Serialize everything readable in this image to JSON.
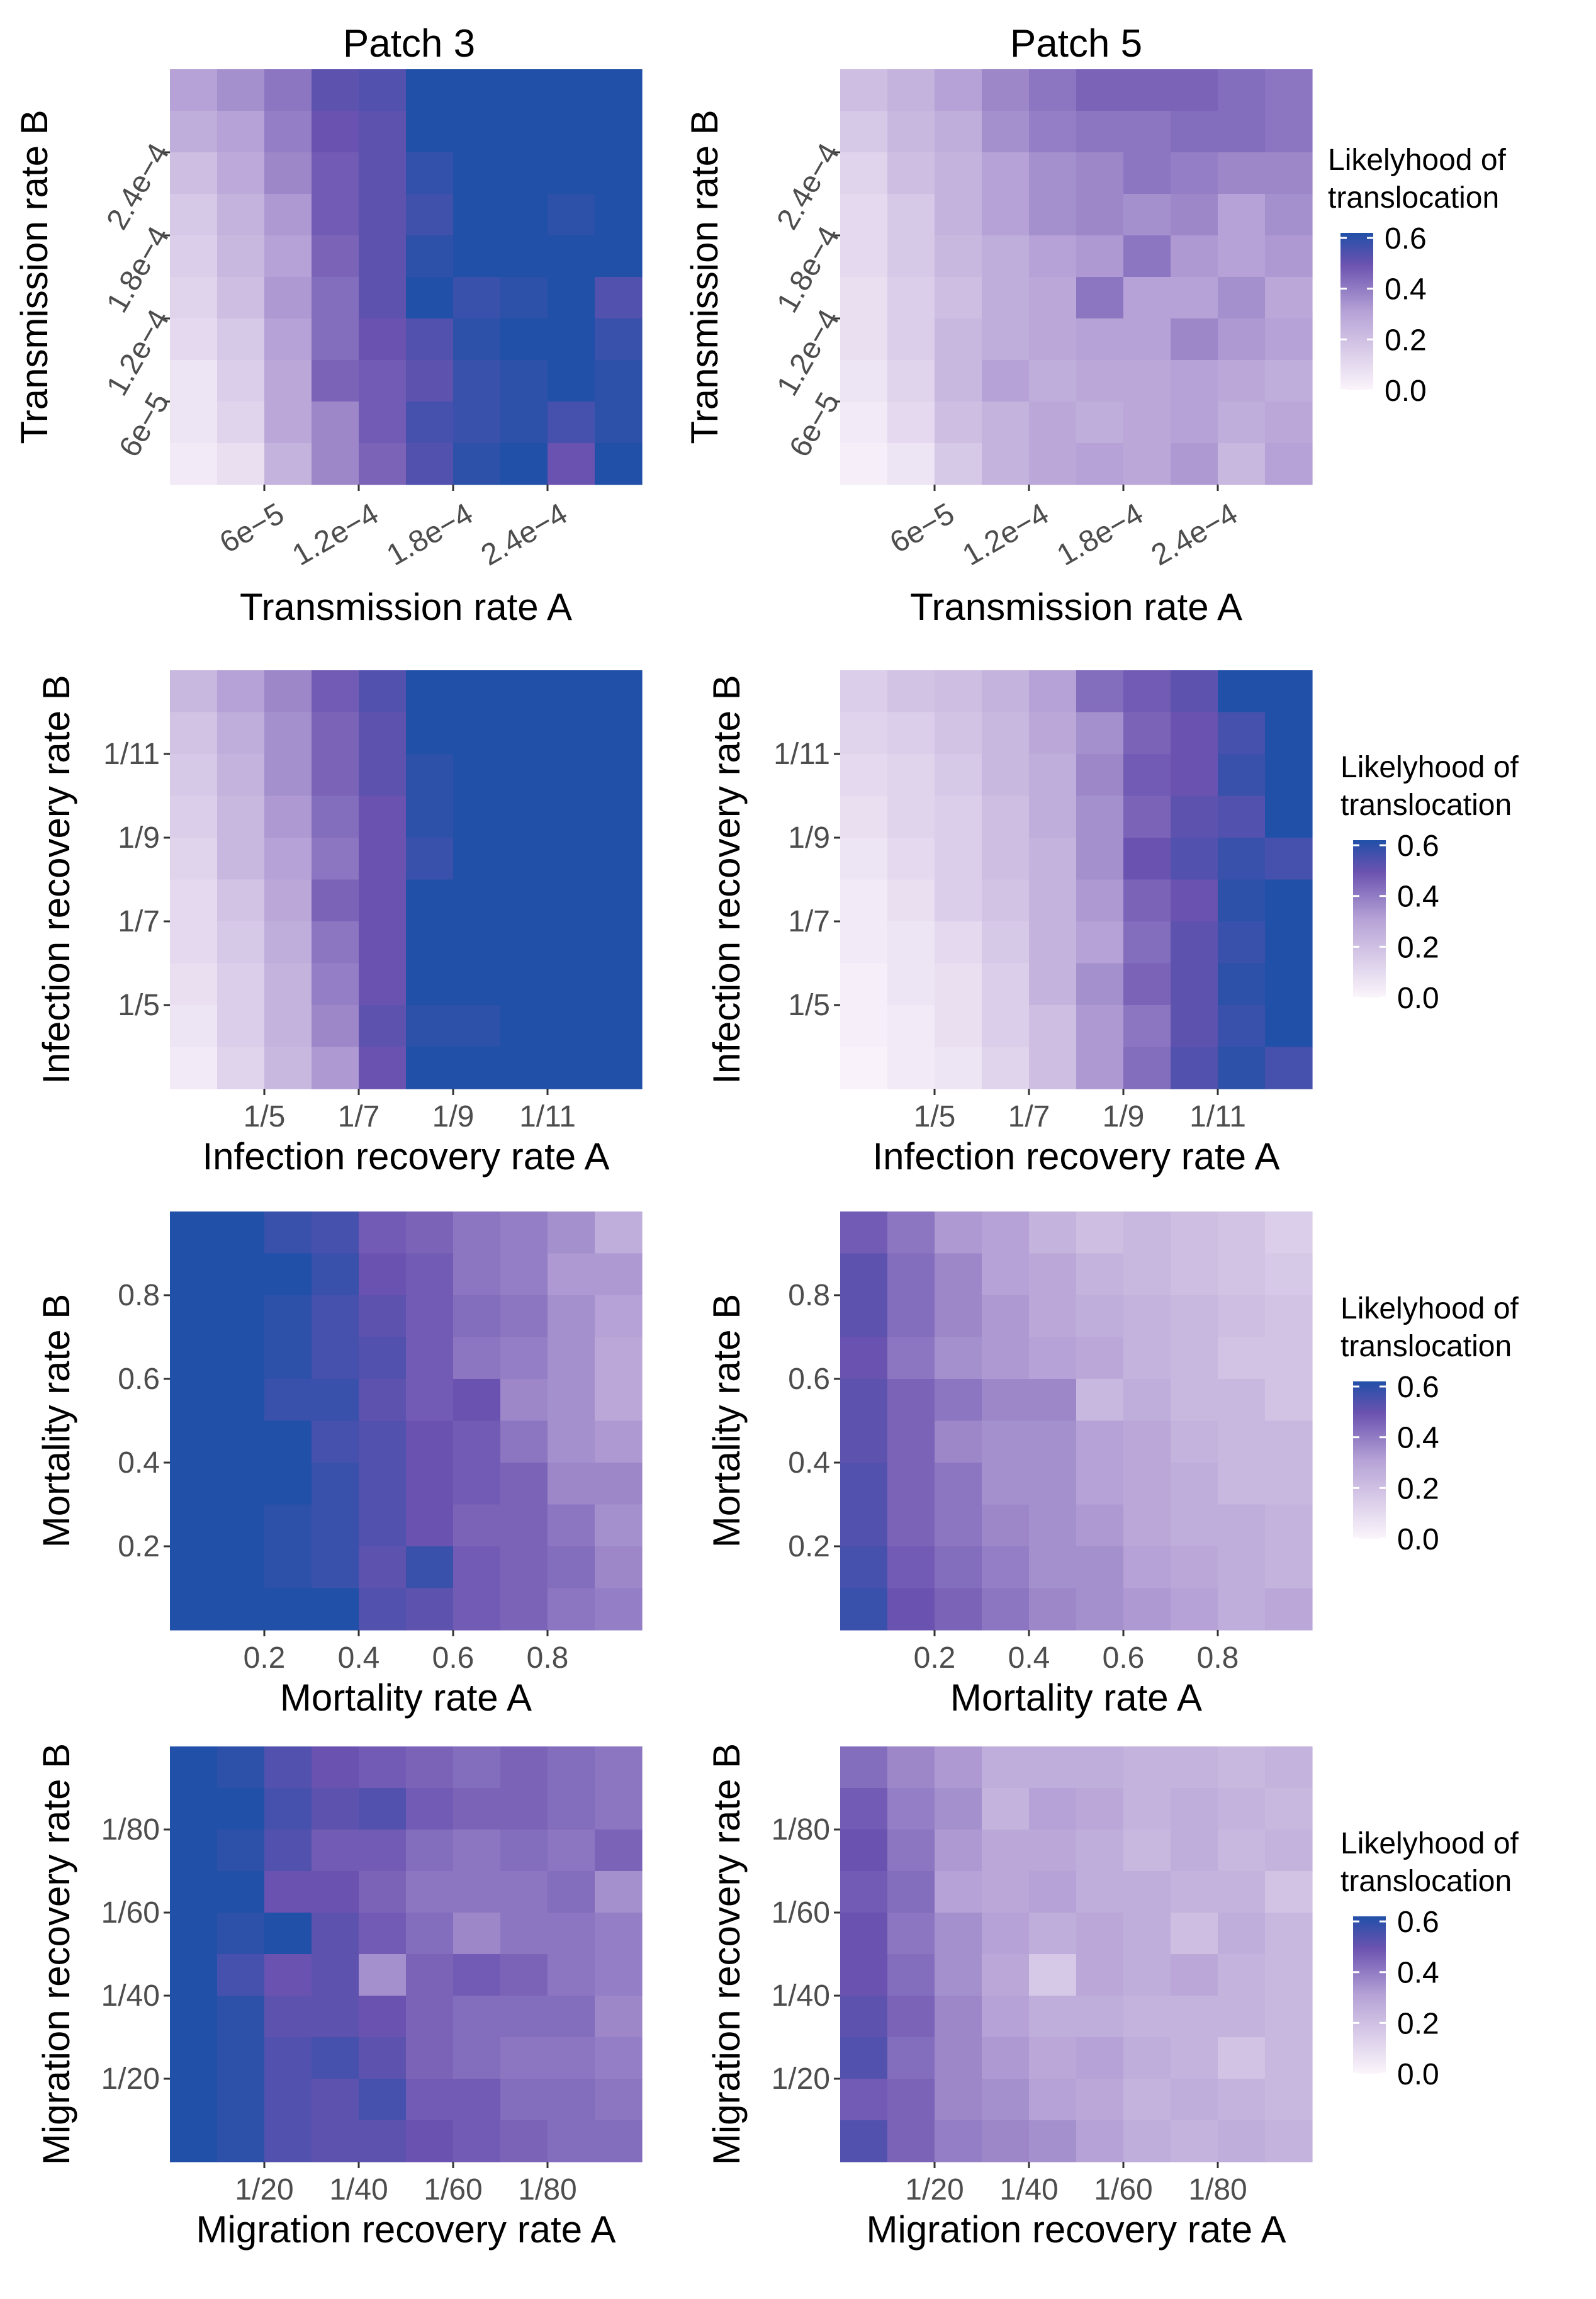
{
  "columns": [
    "Patch 3",
    "Patch 5"
  ],
  "legend": {
    "title_line1": "Likelyhood of",
    "title_line2": "translocation",
    "ticks": [
      "0.6",
      "0.4",
      "0.2",
      "0.0"
    ],
    "tick_values": [
      0.6,
      0.4,
      0.2,
      0.0
    ]
  },
  "colors": {
    "low": "#fbf5fb",
    "mid": "#6a52b0",
    "high": "#2150a8"
  },
  "chart_data": [
    {
      "type": "heatmap",
      "patch": "Patch 3",
      "row": 0,
      "xlabel": "Transmission rate A",
      "ylabel": "Transmission rate B",
      "xticks": [
        "6e−5",
        "1.2e−4",
        "1.8e−4",
        "2.4e−4"
      ],
      "yticks": [
        "2.4e−4",
        "1.8e−4",
        "1.2e−4",
        "6e−5"
      ],
      "ncols": 10,
      "nrows": 10,
      "values": [
        [
          0.3,
          0.34,
          0.4,
          0.5,
          0.52,
          0.62,
          0.62,
          0.62,
          0.62,
          0.62
        ],
        [
          0.26,
          0.3,
          0.38,
          0.48,
          0.5,
          0.62,
          0.62,
          0.62,
          0.62,
          0.62
        ],
        [
          0.2,
          0.27,
          0.36,
          0.46,
          0.5,
          0.57,
          0.62,
          0.62,
          0.62,
          0.62
        ],
        [
          0.16,
          0.24,
          0.32,
          0.46,
          0.5,
          0.55,
          0.6,
          0.62,
          0.58,
          0.62
        ],
        [
          0.14,
          0.22,
          0.3,
          0.44,
          0.5,
          0.58,
          0.62,
          0.6,
          0.62,
          0.62
        ],
        [
          0.12,
          0.2,
          0.32,
          0.42,
          0.5,
          0.62,
          0.56,
          0.58,
          0.62,
          0.52
        ],
        [
          0.1,
          0.16,
          0.3,
          0.42,
          0.48,
          0.52,
          0.58,
          0.62,
          0.62,
          0.56
        ],
        [
          0.06,
          0.14,
          0.28,
          0.44,
          0.46,
          0.5,
          0.56,
          0.58,
          0.62,
          0.58
        ],
        [
          0.06,
          0.12,
          0.28,
          0.36,
          0.46,
          0.54,
          0.56,
          0.58,
          0.54,
          0.58
        ],
        [
          0.04,
          0.08,
          0.24,
          0.36,
          0.44,
          0.52,
          0.58,
          0.6,
          0.48,
          0.62
        ]
      ]
    },
    {
      "type": "heatmap",
      "patch": "Patch 5",
      "row": 0,
      "xlabel": "Transmission rate A",
      "ylabel": "Transmission rate B",
      "xticks": [
        "6e−5",
        "1.2e−4",
        "1.8e−4",
        "2.4e−4"
      ],
      "yticks": [
        "2.4e−4",
        "1.8e−4",
        "1.2e−4",
        "6e−5"
      ],
      "ncols": 10,
      "nrows": 10,
      "values": [
        [
          0.2,
          0.24,
          0.3,
          0.36,
          0.4,
          0.44,
          0.44,
          0.44,
          0.42,
          0.4
        ],
        [
          0.16,
          0.22,
          0.26,
          0.34,
          0.38,
          0.4,
          0.4,
          0.42,
          0.42,
          0.4
        ],
        [
          0.12,
          0.2,
          0.24,
          0.3,
          0.34,
          0.36,
          0.4,
          0.38,
          0.36,
          0.36
        ],
        [
          0.1,
          0.16,
          0.24,
          0.3,
          0.34,
          0.36,
          0.34,
          0.36,
          0.3,
          0.34
        ],
        [
          0.1,
          0.16,
          0.22,
          0.26,
          0.3,
          0.32,
          0.4,
          0.32,
          0.3,
          0.32
        ],
        [
          0.08,
          0.14,
          0.2,
          0.26,
          0.28,
          0.4,
          0.3,
          0.3,
          0.34,
          0.28
        ],
        [
          0.08,
          0.14,
          0.22,
          0.26,
          0.28,
          0.3,
          0.3,
          0.36,
          0.32,
          0.3
        ],
        [
          0.06,
          0.12,
          0.22,
          0.3,
          0.26,
          0.28,
          0.28,
          0.3,
          0.28,
          0.26
        ],
        [
          0.04,
          0.1,
          0.2,
          0.24,
          0.28,
          0.26,
          0.28,
          0.3,
          0.26,
          0.28
        ],
        [
          0.02,
          0.06,
          0.16,
          0.24,
          0.28,
          0.3,
          0.28,
          0.32,
          0.22,
          0.3
        ]
      ]
    },
    {
      "type": "heatmap",
      "patch": "Patch 3",
      "row": 1,
      "xlabel": "Infection recovery rate A",
      "ylabel": "Infection recovery rate B",
      "xticks": [
        "1/5",
        "1/7",
        "1/9",
        "1/11"
      ],
      "yticks": [
        "1/11",
        "1/9",
        "1/7",
        "1/5"
      ],
      "ncols": 10,
      "nrows": 10,
      "values": [
        [
          0.22,
          0.3,
          0.36,
          0.46,
          0.52,
          0.62,
          0.62,
          0.62,
          0.62,
          0.62
        ],
        [
          0.18,
          0.26,
          0.34,
          0.44,
          0.5,
          0.6,
          0.62,
          0.62,
          0.62,
          0.62
        ],
        [
          0.16,
          0.24,
          0.34,
          0.44,
          0.5,
          0.58,
          0.62,
          0.62,
          0.62,
          0.62
        ],
        [
          0.14,
          0.22,
          0.32,
          0.42,
          0.48,
          0.58,
          0.62,
          0.62,
          0.62,
          0.62
        ],
        [
          0.12,
          0.22,
          0.3,
          0.4,
          0.48,
          0.56,
          0.62,
          0.62,
          0.62,
          0.62
        ],
        [
          0.1,
          0.18,
          0.28,
          0.44,
          0.48,
          0.62,
          0.62,
          0.62,
          0.62,
          0.62
        ],
        [
          0.1,
          0.16,
          0.26,
          0.4,
          0.48,
          0.62,
          0.6,
          0.62,
          0.62,
          0.62
        ],
        [
          0.08,
          0.14,
          0.24,
          0.38,
          0.48,
          0.62,
          0.62,
          0.62,
          0.62,
          0.62
        ],
        [
          0.06,
          0.14,
          0.24,
          0.36,
          0.5,
          0.58,
          0.58,
          0.62,
          0.62,
          0.62
        ],
        [
          0.04,
          0.12,
          0.22,
          0.32,
          0.48,
          0.62,
          0.62,
          0.62,
          0.62,
          0.62
        ]
      ]
    },
    {
      "type": "heatmap",
      "patch": "Patch 5",
      "row": 1,
      "xlabel": "Infection recovery rate A",
      "ylabel": "Infection recovery rate B",
      "xticks": [
        "1/5",
        "1/7",
        "1/9",
        "1/11"
      ],
      "yticks": [
        "1/11",
        "1/9",
        "1/7",
        "1/5"
      ],
      "ncols": 10,
      "nrows": 10,
      "values": [
        [
          0.14,
          0.18,
          0.2,
          0.24,
          0.3,
          0.42,
          0.46,
          0.5,
          0.62,
          0.62
        ],
        [
          0.12,
          0.14,
          0.18,
          0.22,
          0.28,
          0.34,
          0.44,
          0.48,
          0.54,
          0.62
        ],
        [
          0.1,
          0.12,
          0.16,
          0.22,
          0.26,
          0.36,
          0.46,
          0.48,
          0.56,
          0.62
        ],
        [
          0.08,
          0.12,
          0.14,
          0.2,
          0.26,
          0.34,
          0.44,
          0.5,
          0.52,
          0.62
        ],
        [
          0.06,
          0.1,
          0.14,
          0.2,
          0.24,
          0.34,
          0.48,
          0.52,
          0.56,
          0.54
        ],
        [
          0.04,
          0.08,
          0.14,
          0.18,
          0.24,
          0.32,
          0.44,
          0.48,
          0.58,
          0.62
        ],
        [
          0.04,
          0.06,
          0.1,
          0.16,
          0.24,
          0.3,
          0.42,
          0.5,
          0.56,
          0.62
        ],
        [
          0.02,
          0.06,
          0.08,
          0.14,
          0.24,
          0.34,
          0.44,
          0.5,
          0.58,
          0.62
        ],
        [
          0.02,
          0.04,
          0.08,
          0.14,
          0.2,
          0.32,
          0.4,
          0.5,
          0.56,
          0.6
        ],
        [
          0.01,
          0.04,
          0.06,
          0.12,
          0.2,
          0.32,
          0.42,
          0.52,
          0.58,
          0.54
        ]
      ]
    },
    {
      "type": "heatmap",
      "patch": "Patch 3",
      "row": 2,
      "xlabel": "Mortality rate A",
      "ylabel": "Mortality rate B",
      "xticks": [
        "0.2",
        "0.4",
        "0.6",
        "0.8"
      ],
      "yticks": [
        "0.8",
        "0.6",
        "0.4",
        "0.2"
      ],
      "ncols": 10,
      "nrows": 10,
      "values": [
        [
          0.62,
          0.62,
          0.56,
          0.54,
          0.46,
          0.44,
          0.4,
          0.38,
          0.34,
          0.26
        ],
        [
          0.62,
          0.62,
          0.6,
          0.56,
          0.48,
          0.46,
          0.4,
          0.38,
          0.32,
          0.32
        ],
        [
          0.62,
          0.62,
          0.58,
          0.54,
          0.5,
          0.46,
          0.42,
          0.4,
          0.34,
          0.3
        ],
        [
          0.62,
          0.6,
          0.58,
          0.54,
          0.52,
          0.46,
          0.4,
          0.38,
          0.34,
          0.28
        ],
        [
          0.62,
          0.62,
          0.56,
          0.56,
          0.5,
          0.46,
          0.48,
          0.36,
          0.34,
          0.28
        ],
        [
          0.62,
          0.62,
          0.6,
          0.54,
          0.52,
          0.48,
          0.46,
          0.4,
          0.34,
          0.32
        ],
        [
          0.62,
          0.62,
          0.6,
          0.56,
          0.52,
          0.48,
          0.46,
          0.44,
          0.36,
          0.36
        ],
        [
          0.62,
          0.62,
          0.58,
          0.56,
          0.52,
          0.48,
          0.44,
          0.44,
          0.4,
          0.34
        ],
        [
          0.62,
          0.62,
          0.58,
          0.56,
          0.5,
          0.56,
          0.46,
          0.44,
          0.42,
          0.36
        ],
        [
          0.62,
          0.62,
          0.6,
          0.62,
          0.52,
          0.5,
          0.46,
          0.44,
          0.4,
          0.38
        ]
      ]
    },
    {
      "type": "heatmap",
      "patch": "Patch 5",
      "row": 2,
      "xlabel": "Mortality rate A",
      "ylabel": "Mortality rate B",
      "xticks": [
        "0.2",
        "0.4",
        "0.6",
        "0.8"
      ],
      "yticks": [
        "0.8",
        "0.6",
        "0.4",
        "0.2"
      ],
      "ncols": 10,
      "nrows": 10,
      "values": [
        [
          0.46,
          0.4,
          0.32,
          0.3,
          0.24,
          0.2,
          0.22,
          0.2,
          0.18,
          0.14
        ],
        [
          0.5,
          0.42,
          0.36,
          0.3,
          0.28,
          0.24,
          0.22,
          0.2,
          0.18,
          0.16
        ],
        [
          0.5,
          0.42,
          0.36,
          0.32,
          0.28,
          0.26,
          0.24,
          0.22,
          0.2,
          0.18
        ],
        [
          0.48,
          0.4,
          0.34,
          0.32,
          0.3,
          0.28,
          0.24,
          0.22,
          0.18,
          0.18
        ],
        [
          0.5,
          0.44,
          0.4,
          0.36,
          0.36,
          0.22,
          0.26,
          0.22,
          0.22,
          0.18
        ],
        [
          0.5,
          0.44,
          0.36,
          0.34,
          0.34,
          0.3,
          0.28,
          0.24,
          0.22,
          0.22
        ],
        [
          0.52,
          0.44,
          0.4,
          0.34,
          0.34,
          0.3,
          0.28,
          0.26,
          0.22,
          0.22
        ],
        [
          0.52,
          0.44,
          0.4,
          0.36,
          0.34,
          0.32,
          0.28,
          0.26,
          0.26,
          0.24
        ],
        [
          0.54,
          0.46,
          0.42,
          0.38,
          0.34,
          0.34,
          0.3,
          0.28,
          0.26,
          0.24
        ],
        [
          0.56,
          0.48,
          0.44,
          0.4,
          0.36,
          0.34,
          0.32,
          0.3,
          0.26,
          0.28
        ]
      ]
    },
    {
      "type": "heatmap",
      "patch": "Patch 3",
      "row": 3,
      "xlabel": "Migration recovery rate A",
      "ylabel": "Migration recovery rate B",
      "xticks": [
        "1/20",
        "1/40",
        "1/60",
        "1/80"
      ],
      "yticks": [
        "1/80",
        "1/60",
        "1/40",
        "1/20"
      ],
      "ncols": 10,
      "nrows": 10,
      "values": [
        [
          0.62,
          0.58,
          0.52,
          0.48,
          0.46,
          0.44,
          0.42,
          0.44,
          0.42,
          0.4
        ],
        [
          0.62,
          0.6,
          0.54,
          0.5,
          0.52,
          0.46,
          0.44,
          0.44,
          0.42,
          0.4
        ],
        [
          0.62,
          0.58,
          0.52,
          0.46,
          0.46,
          0.42,
          0.4,
          0.42,
          0.4,
          0.44
        ],
        [
          0.62,
          0.6,
          0.48,
          0.48,
          0.44,
          0.4,
          0.4,
          0.4,
          0.42,
          0.34
        ],
        [
          0.62,
          0.58,
          0.62,
          0.5,
          0.46,
          0.42,
          0.36,
          0.4,
          0.4,
          0.38
        ],
        [
          0.62,
          0.54,
          0.48,
          0.5,
          0.34,
          0.44,
          0.46,
          0.44,
          0.4,
          0.38
        ],
        [
          0.62,
          0.58,
          0.5,
          0.5,
          0.48,
          0.44,
          0.42,
          0.42,
          0.42,
          0.36
        ],
        [
          0.62,
          0.58,
          0.52,
          0.54,
          0.5,
          0.44,
          0.42,
          0.4,
          0.4,
          0.38
        ],
        [
          0.62,
          0.58,
          0.52,
          0.5,
          0.54,
          0.46,
          0.46,
          0.42,
          0.42,
          0.4
        ],
        [
          0.62,
          0.58,
          0.52,
          0.5,
          0.5,
          0.48,
          0.46,
          0.44,
          0.42,
          0.42
        ]
      ]
    },
    {
      "type": "heatmap",
      "patch": "Patch 5",
      "row": 3,
      "xlabel": "Migration recovery rate A",
      "ylabel": "Migration recovery rate B",
      "xticks": [
        "1/20",
        "1/40",
        "1/60",
        "1/80"
      ],
      "yticks": [
        "1/80",
        "1/60",
        "1/40",
        "1/20"
      ],
      "ncols": 10,
      "nrows": 10,
      "values": [
        [
          0.42,
          0.36,
          0.32,
          0.26,
          0.26,
          0.26,
          0.24,
          0.24,
          0.22,
          0.24
        ],
        [
          0.46,
          0.38,
          0.34,
          0.24,
          0.3,
          0.28,
          0.24,
          0.26,
          0.24,
          0.22
        ],
        [
          0.48,
          0.4,
          0.32,
          0.28,
          0.28,
          0.26,
          0.22,
          0.26,
          0.22,
          0.24
        ],
        [
          0.46,
          0.42,
          0.3,
          0.28,
          0.3,
          0.26,
          0.26,
          0.24,
          0.24,
          0.18
        ],
        [
          0.48,
          0.4,
          0.34,
          0.3,
          0.26,
          0.28,
          0.26,
          0.2,
          0.26,
          0.22
        ],
        [
          0.48,
          0.42,
          0.34,
          0.28,
          0.16,
          0.28,
          0.26,
          0.28,
          0.24,
          0.22
        ],
        [
          0.5,
          0.44,
          0.36,
          0.3,
          0.26,
          0.26,
          0.24,
          0.24,
          0.24,
          0.22
        ],
        [
          0.52,
          0.42,
          0.36,
          0.32,
          0.28,
          0.3,
          0.26,
          0.24,
          0.18,
          0.22
        ],
        [
          0.46,
          0.44,
          0.36,
          0.34,
          0.3,
          0.28,
          0.24,
          0.26,
          0.24,
          0.22
        ],
        [
          0.52,
          0.44,
          0.38,
          0.36,
          0.34,
          0.3,
          0.26,
          0.24,
          0.26,
          0.24
        ]
      ]
    }
  ]
}
